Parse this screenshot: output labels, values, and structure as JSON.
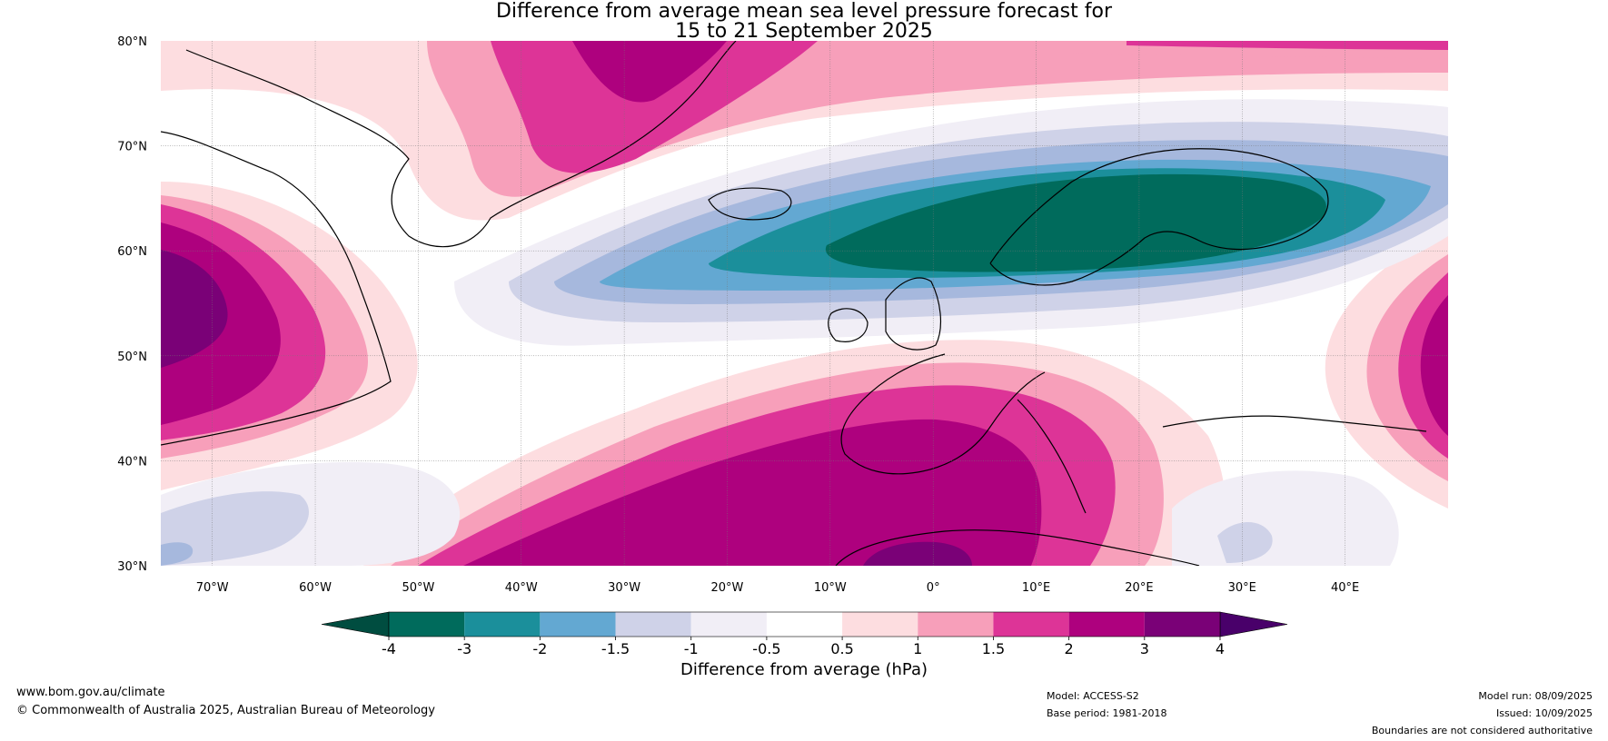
{
  "title_line1": "Difference from average mean sea level pressure forecast for",
  "title_line2": "15 to 21 September 2025",
  "map": {
    "lon_range": [
      -75,
      50
    ],
    "lat_range": [
      30,
      80
    ],
    "lon_ticks": [
      {
        "value": -70,
        "label": "70°W"
      },
      {
        "value": -60,
        "label": "60°W"
      },
      {
        "value": -50,
        "label": "50°W"
      },
      {
        "value": -40,
        "label": "40°W"
      },
      {
        "value": -30,
        "label": "30°W"
      },
      {
        "value": -20,
        "label": "20°W"
      },
      {
        "value": -10,
        "label": "10°W"
      },
      {
        "value": 0,
        "label": "0°"
      },
      {
        "value": 10,
        "label": "10°E"
      },
      {
        "value": 20,
        "label": "20°E"
      },
      {
        "value": 30,
        "label": "30°E"
      },
      {
        "value": 40,
        "label": "40°E"
      }
    ],
    "lat_ticks": [
      {
        "value": 80,
        "label": "80°N"
      },
      {
        "value": 70,
        "label": "70°N"
      },
      {
        "value": 60,
        "label": "60°N"
      },
      {
        "value": 50,
        "label": "50°N"
      },
      {
        "value": 40,
        "label": "40°N"
      },
      {
        "value": 30,
        "label": "30°N"
      }
    ],
    "gridlines": true
  },
  "colorbar": {
    "label": "Difference from average (hPa)",
    "tick_labels": [
      "-4",
      "-3",
      "-2",
      "-1.5",
      "-1",
      "-0.5",
      "0.5",
      "1",
      "1.5",
      "2",
      "3",
      "4"
    ],
    "colors": {
      "below_-4": "#004d40",
      "-4_-3": "#006b5c",
      "-3_-2": "#1b8f9b",
      "-2_-1.5": "#63a8d2",
      "-1.5_-1": "#a6b8dd",
      "-1_-0.5": "#cfd2e8",
      "-0.5_0.5_low": "#f1eef6",
      "neutral": "#ffffff",
      "0.5_1": "#fddde0",
      "1_1.5": "#f79fba",
      "1.5_2": "#dd3497",
      "2_3": "#ae017e",
      "3_4": "#7a0177",
      "above_4": "#49006a"
    }
  },
  "footer": {
    "website": "www.bom.gov.au/climate",
    "copyright": "© Commonwealth of Australia 2025, Australian Bureau of Meteorology",
    "model": "Model: ACCESS-S2",
    "base_period": "Base period: 1981-2018",
    "model_run": "Model run: 08/09/2025",
    "issued": "Issued: 10/09/2025",
    "disclaimer": "Boundaries are not considered authoritative"
  }
}
